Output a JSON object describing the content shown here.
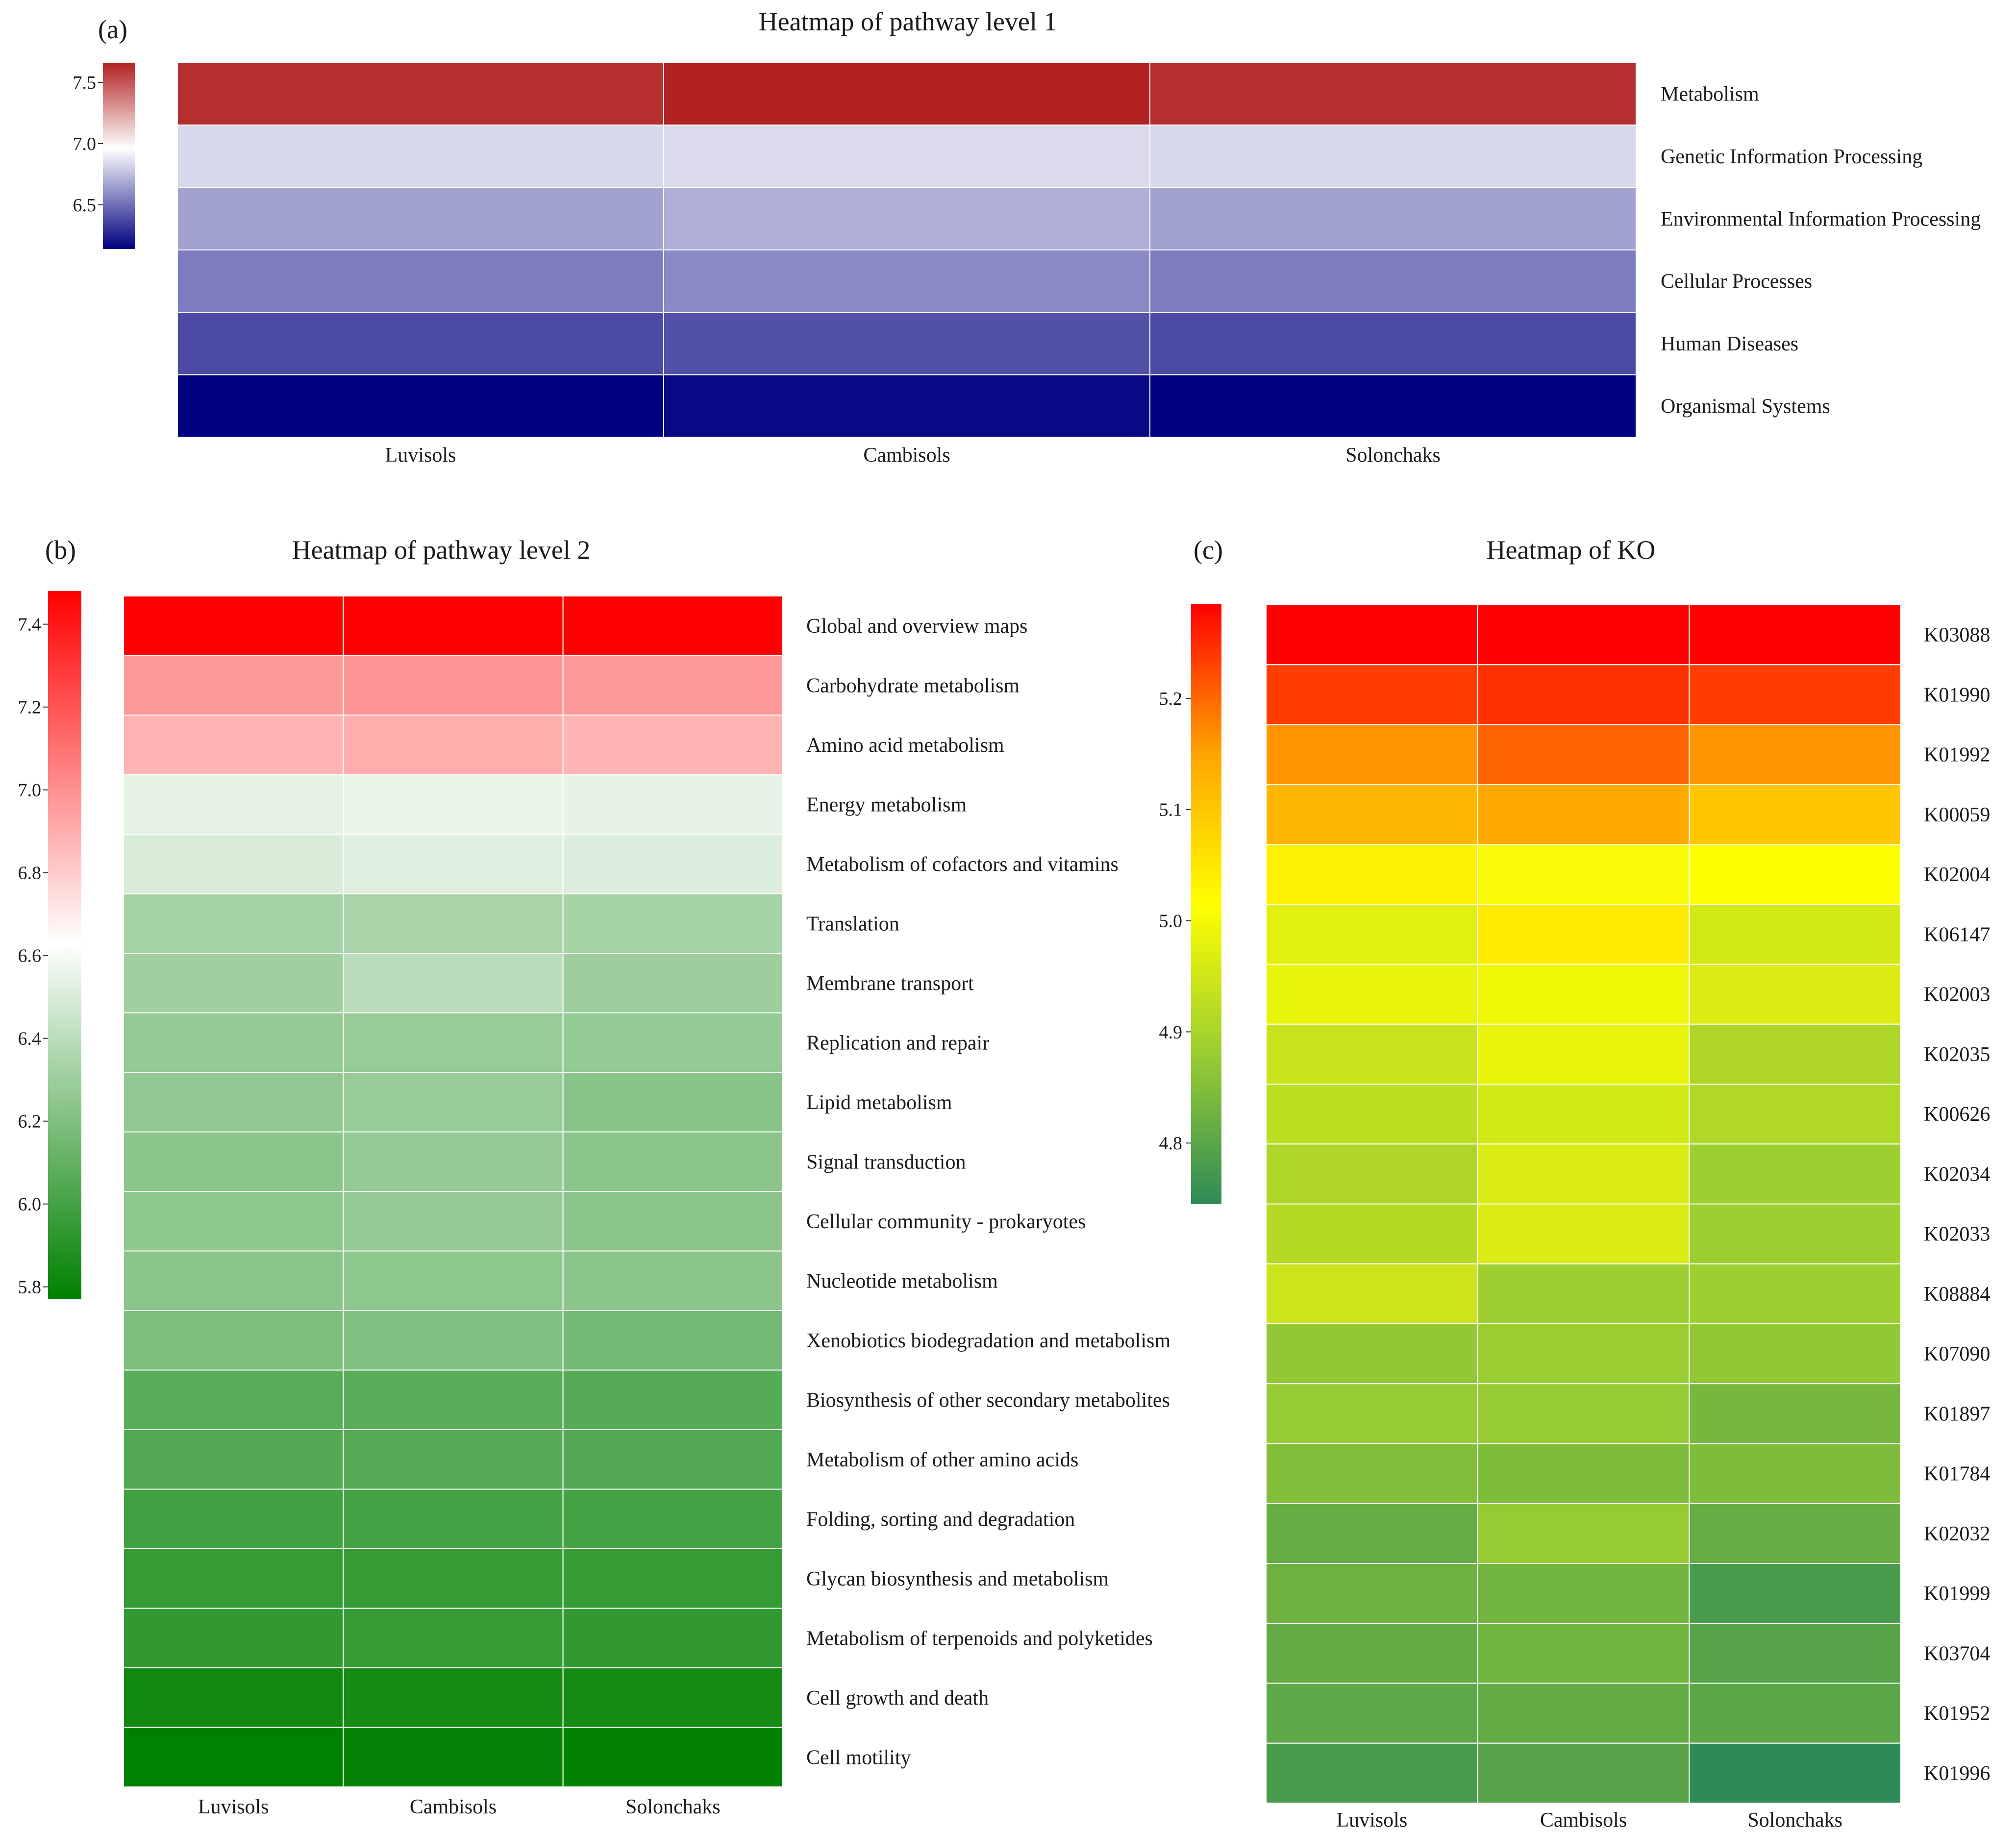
{
  "chart_data": [
    {
      "panel": "(a)",
      "type": "heatmap",
      "title": "Heatmap of pathway level 1",
      "columns": [
        "Luvisols",
        "Cambisols",
        "Solonchaks"
      ],
      "rows": [
        "Metabolism",
        "Genetic Information Processing",
        "Environmental Information Processing",
        "Cellular Processes",
        "Human Diseases",
        "Organismal Systems"
      ],
      "values": [
        [
          7.62,
          7.66,
          7.62
        ],
        [
          6.83,
          6.84,
          6.83
        ],
        [
          6.66,
          6.7,
          6.66
        ],
        [
          6.54,
          6.58,
          6.54
        ],
        [
          6.38,
          6.4,
          6.38
        ],
        [
          6.14,
          6.17,
          6.14
        ]
      ],
      "colorbar": {
        "min": 6.14,
        "max": 7.66,
        "mid": 6.96,
        "ticks": [
          "7.5",
          "7.0",
          "6.5"
        ],
        "tick_values": [
          7.5,
          7.0,
          6.5
        ],
        "low_color": "#000080",
        "mid_color": "#ffffff",
        "high_color": "#b22222"
      }
    },
    {
      "panel": "(b)",
      "type": "heatmap",
      "title": "Heatmap of pathway level 2",
      "columns": [
        "Luvisols",
        "Cambisols",
        "Solonchaks"
      ],
      "rows": [
        "Global and overview maps",
        "Carbohydrate metabolism",
        "Amino acid metabolism",
        "Energy metabolism",
        "Metabolism of cofactors and vitamins",
        "Translation",
        "Membrane transport",
        "Replication and repair",
        "Lipid metabolism",
        "Signal transduction",
        "Cellular community - prokaryotes",
        "Nucleotide metabolism",
        "Xenobiotics biodegradation and metabolism",
        "Biosynthesis of other secondary metabolites",
        "Metabolism of other amino acids",
        "Folding, sorting and degradation",
        "Glycan biosynthesis and metabolism",
        "Metabolism of terpenoids and polyketides",
        "Cell growth and death",
        "Cell motility"
      ],
      "values": [
        [
          7.48,
          7.48,
          7.48
        ],
        [
          6.97,
          6.98,
          6.97
        ],
        [
          6.88,
          6.9,
          6.88
        ],
        [
          6.54,
          6.56,
          6.55
        ],
        [
          6.5,
          6.52,
          6.51
        ],
        [
          6.33,
          6.34,
          6.33
        ],
        [
          6.31,
          6.4,
          6.3
        ],
        [
          6.27,
          6.28,
          6.27
        ],
        [
          6.26,
          6.28,
          6.23
        ],
        [
          6.24,
          6.27,
          6.24
        ],
        [
          6.25,
          6.27,
          6.24
        ],
        [
          6.24,
          6.25,
          6.24
        ],
        [
          6.19,
          6.2,
          6.16
        ],
        [
          6.07,
          6.07,
          6.06
        ],
        [
          6.05,
          6.06,
          6.05
        ],
        [
          5.99,
          6.0,
          6.0
        ],
        [
          5.95,
          5.95,
          5.95
        ],
        [
          5.94,
          5.95,
          5.94
        ],
        [
          5.83,
          5.84,
          5.84
        ],
        [
          5.77,
          5.79,
          5.78
        ]
      ],
      "colorbar": {
        "min": 5.77,
        "max": 7.48,
        "mid": 6.63,
        "ticks": [
          "7.4",
          "7.2",
          "7.0",
          "6.8",
          "6.6",
          "6.4",
          "6.2",
          "6.0",
          "5.8"
        ],
        "tick_values": [
          7.4,
          7.2,
          7.0,
          6.8,
          6.6,
          6.4,
          6.2,
          6.0,
          5.8
        ],
        "low_color": "#008000",
        "mid_color": "#ffffff",
        "high_color": "#ff0000"
      }
    },
    {
      "panel": "(c)",
      "type": "heatmap",
      "title": "Heatmap of KO",
      "columns": [
        "Luvisols",
        "Cambisols",
        "Solonchaks"
      ],
      "rows": [
        "K03088",
        "K01990",
        "K01992",
        "K00059",
        "K02004",
        "K06147",
        "K02003",
        "K02035",
        "K00626",
        "K02034",
        "K02033",
        "K08884",
        "K07090",
        "K01897",
        "K01784",
        "K02032",
        "K01999",
        "K03704",
        "K01952",
        "K01996"
      ],
      "values": [
        [
          5.285,
          5.285,
          5.285
        ],
        [
          5.235,
          5.245,
          5.235
        ],
        [
          5.165,
          5.205,
          5.165
        ],
        [
          5.125,
          5.145,
          5.1
        ],
        [
          5.035,
          5.005,
          5.015
        ],
        [
          4.975,
          5.045,
          4.955
        ],
        [
          4.985,
          4.995,
          4.965
        ],
        [
          4.94,
          4.985,
          4.905
        ],
        [
          4.925,
          4.955,
          4.91
        ],
        [
          4.905,
          4.965,
          4.885
        ],
        [
          4.915,
          4.965,
          4.885
        ],
        [
          4.945,
          4.885,
          4.885
        ],
        [
          4.87,
          4.88,
          4.87
        ],
        [
          4.875,
          4.875,
          4.835
        ],
        [
          4.85,
          4.845,
          4.845
        ],
        [
          4.815,
          4.875,
          4.815
        ],
        [
          4.825,
          4.83,
          4.78
        ],
        [
          4.81,
          4.83,
          4.795
        ],
        [
          4.805,
          4.81,
          4.8
        ],
        [
          4.78,
          4.795,
          4.745
        ]
      ],
      "colorbar": {
        "min": 4.745,
        "max": 5.285,
        "ticks": [
          "5.2",
          "5.1",
          "5.0",
          "4.9",
          "4.8"
        ],
        "tick_values": [
          5.2,
          5.1,
          5.0,
          4.9,
          4.8
        ],
        "stops": [
          "#2e8b57",
          "#9acd32",
          "#ffff00",
          "#ffa500",
          "#ff0000"
        ]
      }
    }
  ]
}
